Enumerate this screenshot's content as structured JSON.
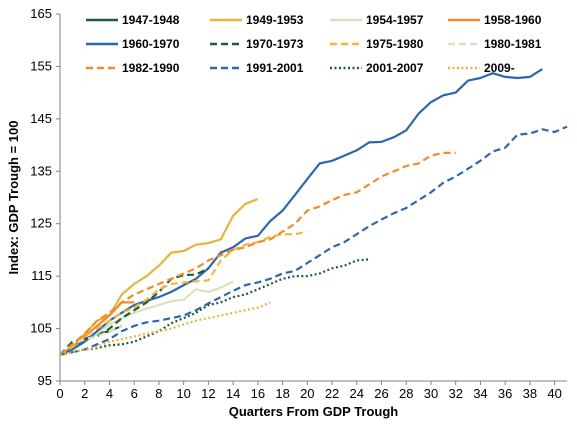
{
  "chart_data": {
    "type": "line",
    "title": "",
    "xlabel": "Quarters From GDP Trough",
    "ylabel": "Index: GDP Trough = 100",
    "xlim": [
      0,
      41
    ],
    "ylim": [
      95,
      165
    ],
    "x_ticks": [
      "0",
      "2",
      "4",
      "6",
      "8",
      "10",
      "12",
      "14",
      "16",
      "18",
      "20",
      "22",
      "24",
      "26",
      "28",
      "30",
      "32",
      "34",
      "36",
      "38",
      "40"
    ],
    "y_ticks": [
      "95",
      "105",
      "115",
      "125",
      "135",
      "145",
      "155",
      "165"
    ],
    "grid": false,
    "legend": "top, 4 columns",
    "series": [
      {
        "name": "1947-1948",
        "color": "#1e5c3a",
        "dash": "solid",
        "values": [
          100.0,
          101.5,
          103.0,
          104.0,
          104.5,
          105.5
        ]
      },
      {
        "name": "1949-1953",
        "color": "#e8b53c",
        "dash": "solid",
        "values": [
          100.0,
          101.0,
          104.0,
          106.5,
          107.5,
          111.5,
          113.5,
          115.0,
          117.0,
          119.5,
          119.8,
          121.0,
          121.3,
          122.0,
          126.5,
          128.8,
          129.7
        ]
      },
      {
        "name": "1954-1957",
        "color": "#d6e4bd",
        "dash": "solid",
        "values": [
          100.0,
          101.0,
          102.5,
          104.0,
          105.8,
          107.0,
          108.0,
          108.8,
          109.5,
          110.2,
          110.5,
          112.5,
          112.0,
          112.8,
          114.0
        ]
      },
      {
        "name": "1958-1960",
        "color": "#f28c28",
        "dash": "solid",
        "values": [
          100.0,
          101.5,
          103.5,
          105.5,
          107.5,
          110.0,
          110.0
        ]
      },
      {
        "name": "1960-1970",
        "color": "#2e67b1",
        "dash": "solid",
        "values": [
          100.0,
          101.0,
          102.5,
          104.5,
          106.5,
          108.0,
          109.5,
          110.3,
          111.0,
          112.0,
          113.3,
          114.5,
          116.5,
          119.5,
          120.5,
          122.2,
          122.7,
          125.5,
          127.5,
          130.5,
          133.5,
          136.5,
          137.0,
          138.0,
          139.0,
          140.5,
          140.6,
          141.5,
          142.8,
          146.0,
          148.2,
          149.5,
          150.0,
          152.3,
          152.8,
          153.7,
          153.0,
          152.8,
          153.0,
          154.5
        ]
      },
      {
        "name": "1970-1973",
        "color": "#1e5c3a",
        "dash": "dashed",
        "values": [
          100.0,
          102.5,
          103.0,
          103.5,
          105.0,
          107.0,
          108.5,
          110.0,
          112.0,
          114.5,
          115.2,
          115.3,
          116.5
        ]
      },
      {
        "name": "1975-1980",
        "color": "#f5b63c",
        "dash": "dashed",
        "values": [
          100.0,
          101.5,
          103.5,
          105.0,
          106.5,
          108.0,
          109.0,
          110.5,
          112.5,
          113.5,
          113.8,
          114.0,
          114.2,
          118.0,
          120.0,
          121.0,
          121.5,
          122.5,
          123.0,
          123.0,
          123.5
        ]
      },
      {
        "name": "1980-1981",
        "color": "#d6e4bd",
        "dash": "dashed",
        "values": [
          100.0,
          102.0,
          103.0,
          103.5,
          104.5,
          105.5
        ]
      },
      {
        "name": "1982-1990",
        "color": "#f28c28",
        "dash": "dashed",
        "values": [
          100.0,
          102.0,
          104.0,
          106.5,
          108.0,
          110.0,
          111.5,
          112.5,
          113.5,
          114.5,
          115.5,
          116.5,
          118.0,
          119.0,
          120.0,
          120.5,
          121.5,
          122.0,
          123.5,
          125.0,
          127.5,
          128.3,
          129.5,
          130.5,
          131.0,
          132.5,
          134.0,
          135.0,
          136.0,
          136.5,
          138.0,
          138.5,
          138.5
        ]
      },
      {
        "name": "1991-2001",
        "color": "#2e67b1",
        "dash": "dashed",
        "values": [
          100.0,
          100.5,
          101.0,
          102.0,
          103.0,
          104.5,
          105.5,
          106.2,
          106.5,
          107.0,
          107.5,
          108.5,
          109.8,
          111.0,
          112.2,
          113.3,
          113.8,
          114.5,
          115.5,
          116.0,
          117.5,
          119.0,
          120.5,
          121.5,
          123.0,
          124.5,
          125.8,
          127.0,
          128.0,
          129.5,
          131.0,
          132.8,
          134.0,
          135.5,
          137.0,
          138.8,
          139.5,
          142.0,
          142.2,
          143.0,
          142.5,
          143.5
        ]
      },
      {
        "name": "2001-2007",
        "color": "#1e5c3a",
        "dash": "dotted",
        "values": [
          100.0,
          100.5,
          101.0,
          101.3,
          101.8,
          102.0,
          102.5,
          103.5,
          104.5,
          106.0,
          107.0,
          108.0,
          109.5,
          110.0,
          111.0,
          111.5,
          112.5,
          113.5,
          114.5,
          115.0,
          115.0,
          115.5,
          116.5,
          117.0,
          118.0,
          118.2
        ]
      },
      {
        "name": "2009-",
        "color": "#e8b53c",
        "dash": "dotted",
        "values": [
          100.0,
          100.5,
          101.0,
          101.5,
          102.5,
          103.0,
          103.5,
          104.0,
          104.5,
          105.0,
          105.8,
          106.5,
          107.0,
          107.5,
          108.0,
          108.5,
          109.0,
          110.0
        ]
      }
    ]
  }
}
